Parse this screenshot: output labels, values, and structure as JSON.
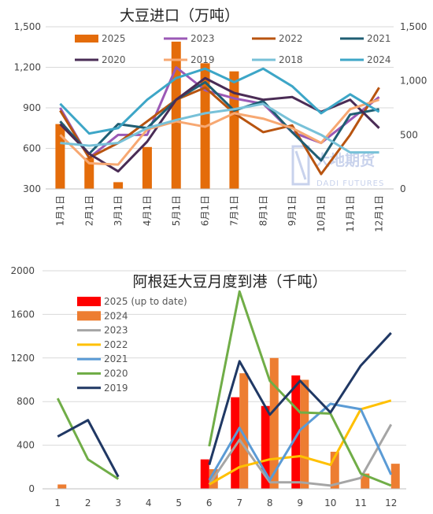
{
  "chart_data": [
    {
      "type": "bar",
      "title": "大豆进口（万吨）",
      "categories": [
        "1月1日",
        "2月1日",
        "3月1日",
        "4月1日",
        "5月1日",
        "6月1日",
        "7月1日",
        "8月1日",
        "9月1日",
        "10月1日",
        "11月1日",
        "12月1日"
      ],
      "y_left": {
        "ticks": [
          "300",
          "600",
          "900",
          "1,200",
          "1,500"
        ],
        "range": [
          300,
          1500
        ]
      },
      "y_right": {
        "ticks": [
          "0",
          "500",
          "1,000",
          "1,500"
        ],
        "range": [
          0,
          1500
        ]
      },
      "watermark": {
        "cn": "大地期货",
        "en": "DADI FUTURES"
      },
      "series": [
        {
          "name": "2025",
          "kind": "bar",
          "color": "#E46C0A",
          "values": [
            780,
            530,
            350,
            610,
            1390,
            1230,
            1170,
            null,
            null,
            null,
            null,
            null
          ]
        },
        {
          "name": "2023",
          "kind": "line",
          "color": "#9B59B6",
          "values": [
            900,
            530,
            700,
            700,
            1200,
            1030,
            970,
            930,
            720,
            640,
            810,
            980
          ]
        },
        {
          "name": "2022",
          "kind": "line",
          "color": "#B85410",
          "values": [
            880,
            530,
            640,
            800,
            960,
            1050,
            860,
            720,
            770,
            410,
            700,
            1050
          ]
        },
        {
          "name": "2021",
          "kind": "line",
          "color": "#1F5E73",
          "values": [
            800,
            560,
            780,
            750,
            960,
            1090,
            880,
            950,
            720,
            510,
            850,
            890
          ]
        },
        {
          "name": "2020",
          "kind": "line",
          "color": "#4A2C55",
          "values": [
            780,
            560,
            430,
            650,
            960,
            1120,
            1010,
            960,
            980,
            870,
            960,
            750
          ]
        },
        {
          "name": "2019",
          "kind": "line",
          "color": "#F7A872",
          "values": [
            700,
            490,
            480,
            740,
            800,
            760,
            860,
            820,
            750,
            640,
            890,
            960
          ]
        },
        {
          "name": "2018",
          "kind": "line",
          "color": "#78C1D8",
          "values": [
            640,
            620,
            640,
            750,
            810,
            860,
            890,
            930,
            800,
            700,
            570,
            570
          ]
        },
        {
          "name": "2024",
          "kind": "line",
          "color": "#3DA6C7",
          "values": [
            930,
            710,
            750,
            960,
            1120,
            1190,
            1090,
            1190,
            1060,
            860,
            1000,
            870
          ]
        }
      ]
    },
    {
      "type": "bar",
      "title": "阿根廷大豆月度到港（千吨）",
      "categories": [
        "1",
        "2",
        "3",
        "4",
        "5",
        "6",
        "7",
        "8",
        "9",
        "10",
        "11",
        "12"
      ],
      "y": {
        "ticks": [
          "0",
          "400",
          "800",
          "1200",
          "1600",
          "2000"
        ],
        "range": [
          0,
          2000
        ]
      },
      "series": [
        {
          "name": "2025 (up to date)",
          "kind": "bar",
          "color": "#FF0000",
          "values": [
            null,
            null,
            null,
            null,
            null,
            270,
            840,
            760,
            1040,
            null,
            null,
            null
          ]
        },
        {
          "name": "2024",
          "kind": "bar",
          "color": "#ED7D31",
          "values": [
            40,
            null,
            null,
            null,
            null,
            180,
            1060,
            1200,
            1000,
            340,
            140,
            230
          ]
        },
        {
          "name": "2023",
          "kind": "line",
          "color": "#A5A5A5",
          "values": [
            null,
            null,
            null,
            null,
            null,
            40,
            450,
            60,
            60,
            30,
            100,
            590
          ]
        },
        {
          "name": "2022",
          "kind": "line",
          "color": "#FFC000",
          "values": [
            null,
            null,
            null,
            null,
            null,
            40,
            200,
            270,
            300,
            220,
            730,
            810
          ]
        },
        {
          "name": "2021",
          "kind": "line",
          "color": "#5B9BD5",
          "values": [
            null,
            null,
            null,
            null,
            null,
            80,
            560,
            80,
            540,
            780,
            730,
            130
          ]
        },
        {
          "name": "2020",
          "kind": "line",
          "color": "#70AD47",
          "values": [
            830,
            270,
            90,
            null,
            null,
            390,
            1810,
            990,
            700,
            690,
            140,
            30
          ]
        },
        {
          "name": "2019",
          "kind": "line",
          "color": "#203864",
          "values": [
            480,
            630,
            110,
            null,
            null,
            220,
            1170,
            680,
            990,
            700,
            1130,
            1430
          ]
        }
      ]
    }
  ]
}
